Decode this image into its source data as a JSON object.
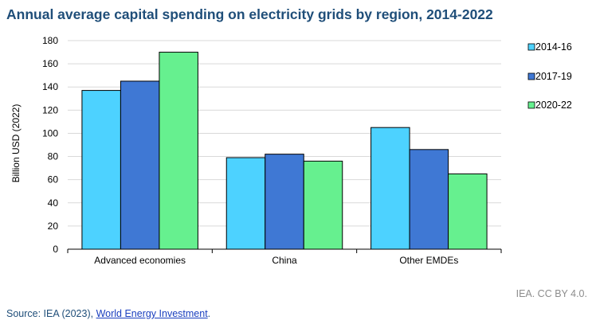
{
  "title": "Annual average capital spending on electricity grids by region, 2014-2022",
  "credit": "IEA. CC BY 4.0.",
  "source": {
    "prefix": "Source: IEA (2023), ",
    "link_text": "World Energy Investment",
    "suffix": "."
  },
  "colors": {
    "series_2014_16": "#4dd2ff",
    "series_2017_19": "#3f78d4",
    "series_2020_22": "#66f08f",
    "title": "#1f4e79"
  },
  "chart_data": {
    "type": "bar",
    "title": "Annual average capital spending on electricity grids by region, 2014-2022",
    "xlabel": "",
    "ylabel": "Billion USD (2022)",
    "ylim": [
      0,
      180
    ],
    "yticks": [
      0,
      20,
      40,
      60,
      80,
      100,
      120,
      140,
      160,
      180
    ],
    "grid": true,
    "legend_position": "right",
    "categories": [
      "Advanced economies",
      "China",
      "Other EMDEs"
    ],
    "series": [
      {
        "name": "2014-16",
        "color": "#4dd2ff",
        "values": [
          137,
          79,
          105
        ]
      },
      {
        "name": "2017-19",
        "color": "#3f78d4",
        "values": [
          145,
          82,
          86
        ]
      },
      {
        "name": "2020-22",
        "color": "#66f08f",
        "values": [
          170,
          76,
          65
        ]
      }
    ]
  }
}
